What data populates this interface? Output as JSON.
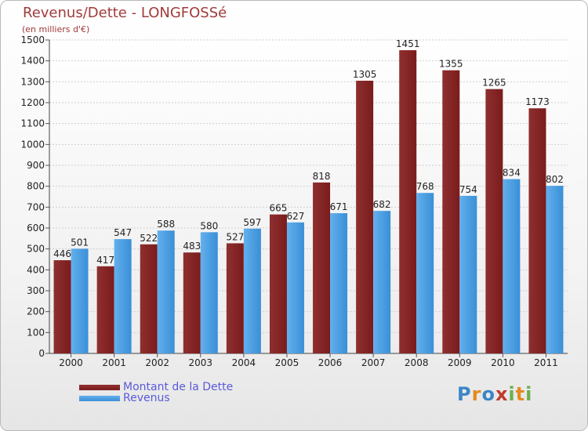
{
  "colors": {
    "dette": "#7a1c1c",
    "dette_light": "#8f2f30",
    "revenus": "#3a8fd6",
    "revenus_light": "#62b0ee",
    "title": "#a23a3a",
    "legend_text": "#5a5adb"
  },
  "logo": {
    "text": "Proxiti",
    "letters": [
      "P",
      "r",
      "o",
      "x",
      "i",
      "t",
      "i"
    ],
    "letter_colors": [
      "#3a86c8",
      "#e58a1f",
      "#3a86c8",
      "#c0392b",
      "#6ab04c",
      "#e58a1f",
      "#6ab04c"
    ]
  },
  "chart_data": {
    "type": "bar",
    "title": "Revenus/Dette - LONGFOSSé",
    "subtitle": "(en milliers d'€)",
    "categories": [
      "2000",
      "2001",
      "2002",
      "2003",
      "2004",
      "2005",
      "2006",
      "2007",
      "2008",
      "2009",
      "2010",
      "2011"
    ],
    "series": [
      {
        "name": "Montant de la Dette",
        "values": [
          446,
          417,
          522,
          483,
          527,
          665,
          818,
          1305,
          1451,
          1355,
          1265,
          1173
        ]
      },
      {
        "name": "Revenus",
        "values": [
          501,
          547,
          588,
          580,
          597,
          627,
          671,
          682,
          768,
          754,
          834,
          802
        ]
      }
    ],
    "ylim": [
      0,
      1500
    ],
    "yticks": [
      0,
      100,
      200,
      300,
      400,
      500,
      600,
      700,
      800,
      900,
      1000,
      1100,
      1200,
      1300,
      1400,
      1500
    ],
    "grid": true,
    "legend_position": "bottom-left"
  }
}
